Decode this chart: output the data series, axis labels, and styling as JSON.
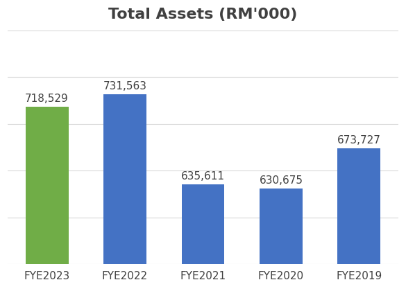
{
  "title": "Total Assets (RM'000)",
  "categories": [
    "FYE2023",
    "FYE2022",
    "FYE2021",
    "FYE2020",
    "FYE2019"
  ],
  "values": [
    718529,
    731563,
    635611,
    630675,
    673727
  ],
  "bar_colors": [
    "#70AD47",
    "#4472C4",
    "#4472C4",
    "#4472C4",
    "#4472C4"
  ],
  "label_color": "#404040",
  "background_color": "#FFFFFF",
  "ylim": [
    550000,
    800000
  ],
  "ytick_step": 50000,
  "grid_color": "#D9D9D9",
  "title_fontsize": 16,
  "label_fontsize": 11,
  "tick_fontsize": 11,
  "bar_width": 0.55
}
